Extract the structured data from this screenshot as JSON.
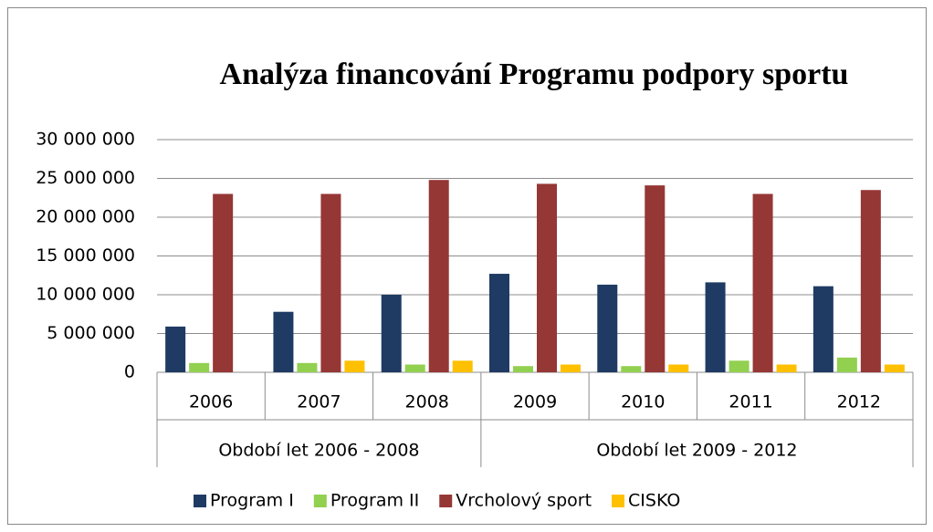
{
  "chart_data": {
    "type": "bar",
    "title": "Analýza financování Programu podpory sportu",
    "categories": [
      "2006",
      "2007",
      "2008",
      "2009",
      "2010",
      "2011",
      "2012"
    ],
    "groups": [
      {
        "label": "Období let 2006 - 2008",
        "span": 3
      },
      {
        "label": "Období let 2009 - 2012",
        "span": 4
      }
    ],
    "series": [
      {
        "name": "Program I",
        "color": "#1f3b63",
        "values": [
          5900000,
          7800000,
          10000000,
          12700000,
          11300000,
          11600000,
          11100000
        ]
      },
      {
        "name": "Program II",
        "color": "#92d050",
        "values": [
          1200000,
          1200000,
          1000000,
          800000,
          800000,
          1500000,
          1900000
        ]
      },
      {
        "name": "Vrcholový sport",
        "color": "#953735",
        "values": [
          23000000,
          23000000,
          24800000,
          24300000,
          24100000,
          23000000,
          23500000
        ]
      },
      {
        "name": "CISKO",
        "color": "#ffc000",
        "values": [
          0,
          1500000,
          1500000,
          1000000,
          1000000,
          1000000,
          1000000
        ]
      }
    ],
    "ylim": [
      0,
      30000000
    ],
    "yticks": [
      0,
      {
        "value": 5000000,
        "label": "5 000 000"
      },
      {
        "value": 10000000,
        "label": "10 000 000"
      },
      {
        "value": 15000000,
        "label": "15 000 000"
      },
      {
        "value": 20000000,
        "label": "20 000 000"
      },
      {
        "value": 25000000,
        "label": "25 000 000"
      },
      {
        "value": 30000000,
        "label": "30 000 000"
      }
    ],
    "grid": true,
    "legend": "bottom"
  }
}
